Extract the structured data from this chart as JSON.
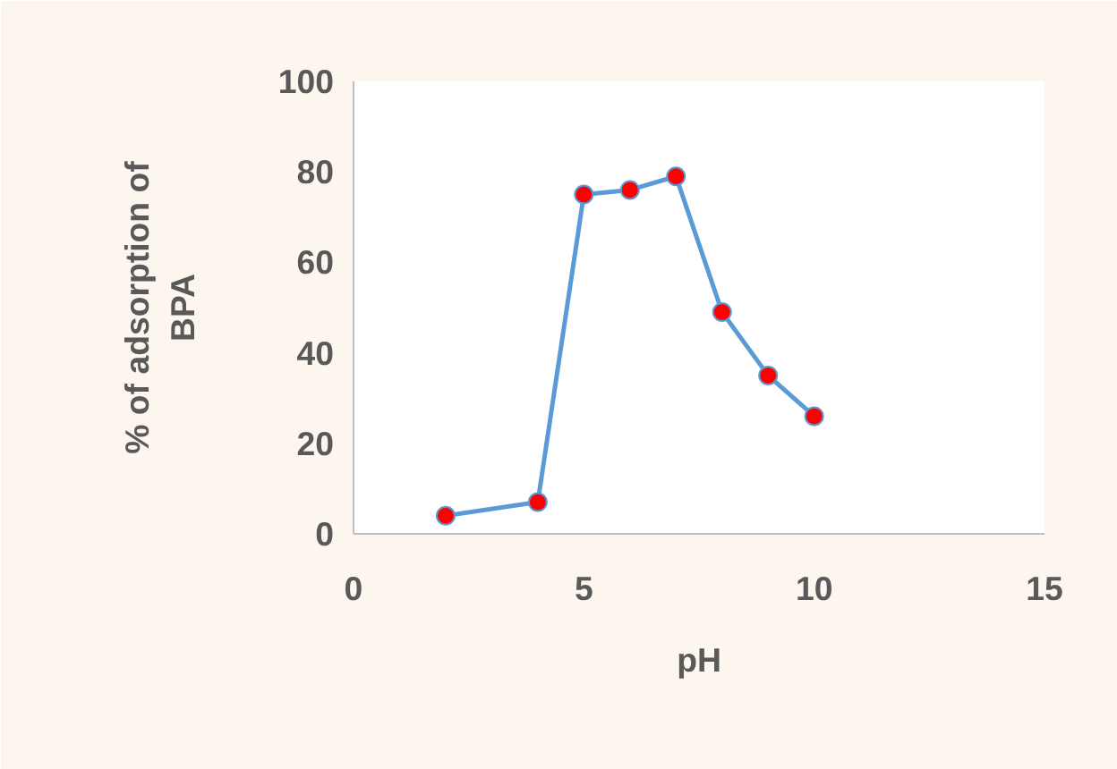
{
  "chart_data": {
    "type": "line",
    "xlabel": "pH",
    "ylabel": "% of adsorption of\nBPA",
    "x": [
      2,
      4,
      5,
      6,
      7,
      8,
      9,
      10
    ],
    "series": [
      {
        "color": "#5b9bd5",
        "marker": "none",
        "values": [
          4,
          7,
          75,
          76,
          79,
          49,
          35,
          26
        ]
      },
      {
        "type": "scatter",
        "color": "#ff0000",
        "marker": "circle",
        "values": [
          4,
          7,
          75,
          76,
          79,
          49,
          35,
          26
        ]
      }
    ],
    "xlim": [
      0,
      15
    ],
    "xticks": [
      0,
      5,
      10,
      15
    ],
    "ylim": [
      0,
      100
    ],
    "yticks": [
      0,
      20,
      40,
      60,
      80,
      100
    ],
    "grid": false
  }
}
